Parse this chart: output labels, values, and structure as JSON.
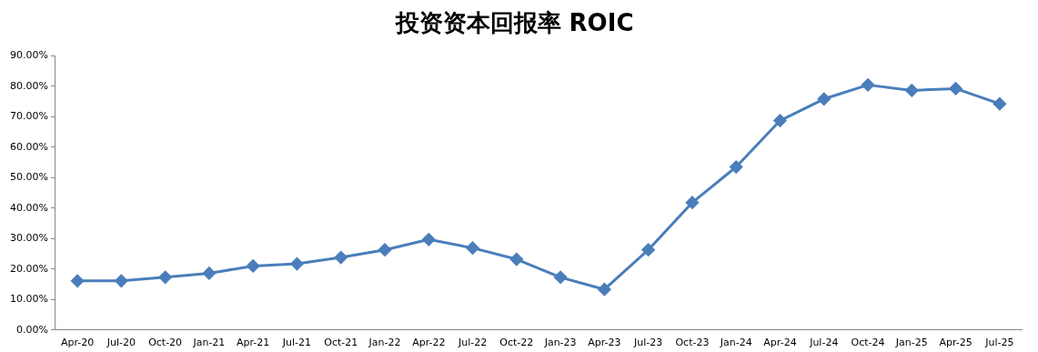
{
  "chart_data": {
    "type": "line",
    "title": "投资资本回报率 ROIC",
    "categories": [
      "Apr-20",
      "Jul-20",
      "Oct-20",
      "Jan-21",
      "Apr-21",
      "Jul-21",
      "Oct-21",
      "Jan-22",
      "Apr-22",
      "Jul-22",
      "Oct-22",
      "Jan-23",
      "Apr-23",
      "Jul-23",
      "Oct-23",
      "Jan-24",
      "Apr-24",
      "Jul-24",
      "Oct-24",
      "Jan-25",
      "Apr-25",
      "Jul-25"
    ],
    "series": [
      {
        "color": "#4a7ebb",
        "values": [
          16.1,
          16.1,
          17.3,
          18.6,
          21.0,
          21.7,
          23.8,
          26.3,
          29.7,
          26.9,
          23.2,
          17.3,
          13.3,
          26.3,
          41.8,
          53.5,
          68.7,
          75.8,
          80.4,
          78.6,
          79.2,
          74.2
        ]
      }
    ],
    "ylim": [
      0,
      90
    ],
    "yticks": [
      {
        "value": 0,
        "label": "0.00%"
      },
      {
        "value": 10,
        "label": "10.00%"
      },
      {
        "value": 20,
        "label": "20.00%"
      },
      {
        "value": 30,
        "label": "30.00%"
      },
      {
        "value": 40,
        "label": "40.00%"
      },
      {
        "value": 50,
        "label": "50.00%"
      },
      {
        "value": 60,
        "label": "60.00%"
      },
      {
        "value": 70,
        "label": "70.00%"
      },
      {
        "value": 80,
        "label": "80.00%"
      },
      {
        "value": 90,
        "label": "90.00%"
      }
    ],
    "grid": false,
    "legend": false,
    "marker": "diamond",
    "line_style": "solid"
  }
}
